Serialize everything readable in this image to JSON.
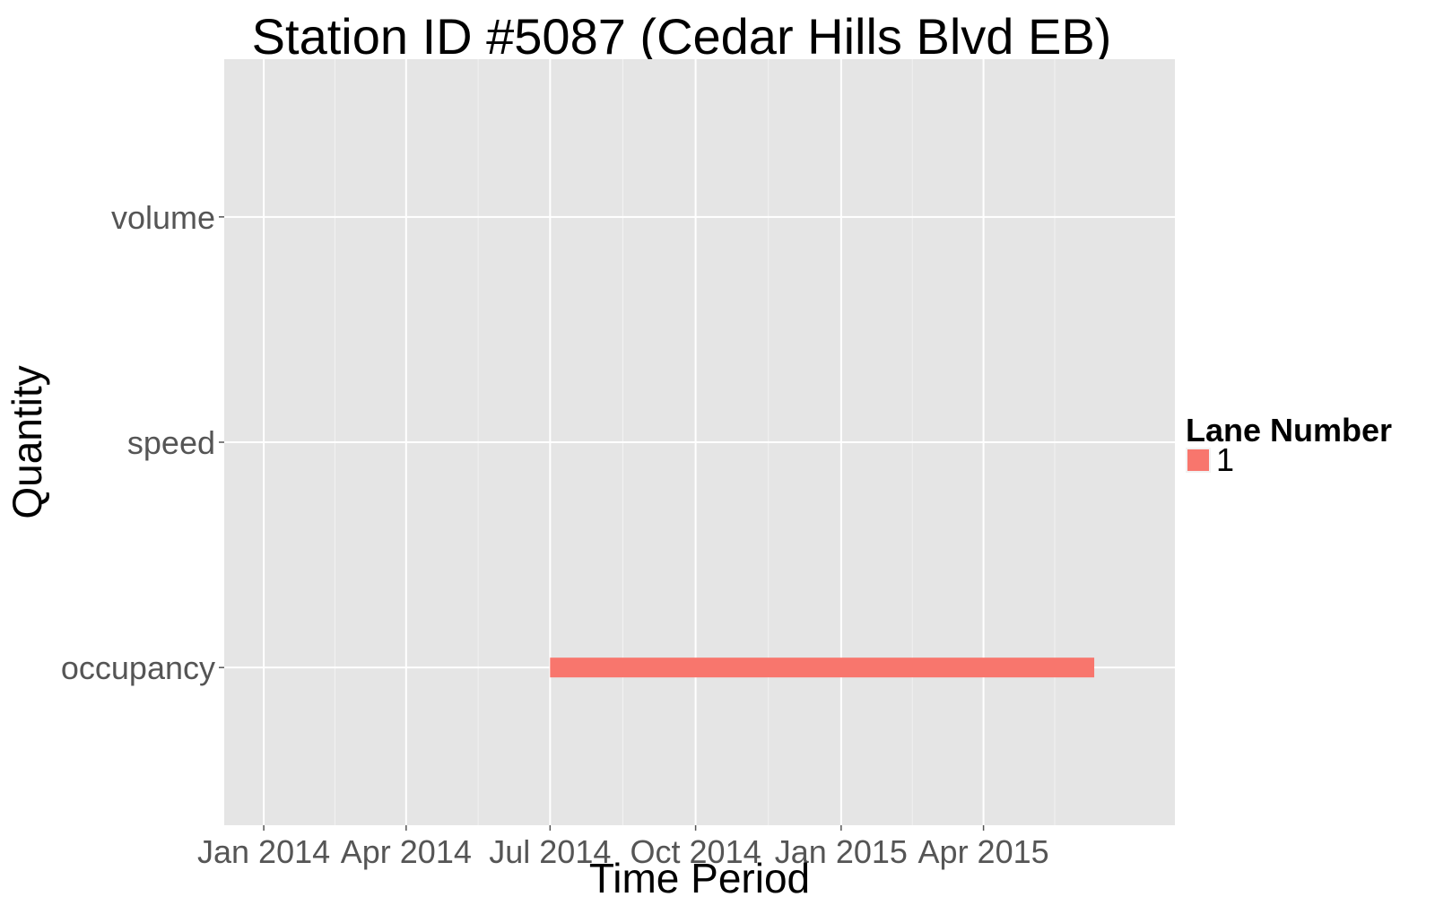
{
  "chart_data": {
    "type": "bar",
    "orientation": "horizontal-range",
    "title": "Station ID #5087 (Cedar Hills Blvd EB)",
    "xlabel": "Time Period",
    "ylabel": "Quantity",
    "categories": [
      "volume",
      "speed",
      "occupancy"
    ],
    "x_ticks": [
      {
        "date": "2014-01-01",
        "label": "Jan 2014"
      },
      {
        "date": "2014-04-01",
        "label": "Apr 2014"
      },
      {
        "date": "2014-07-01",
        "label": "Jul 2014"
      },
      {
        "date": "2014-10-01",
        "label": "Oct 2014"
      },
      {
        "date": "2015-01-01",
        "label": "Jan 2015"
      },
      {
        "date": "2015-04-01",
        "label": "Apr 2015"
      }
    ],
    "xlim": [
      "2013-12-07",
      "2015-07-31"
    ],
    "grid": true,
    "legend": {
      "title": "Lane Number",
      "position": "right",
      "entries": [
        {
          "label": "1",
          "color": "#F8766D"
        }
      ]
    },
    "series": [
      {
        "name": "1",
        "color": "#F8766D",
        "segments": [
          {
            "category": "occupancy",
            "start": "2014-07-01",
            "end": "2015-06-10"
          }
        ]
      }
    ],
    "colors": {
      "panel": "#E5E5E5",
      "grid": "#FFFFFF",
      "tick_text": "#555555"
    }
  }
}
